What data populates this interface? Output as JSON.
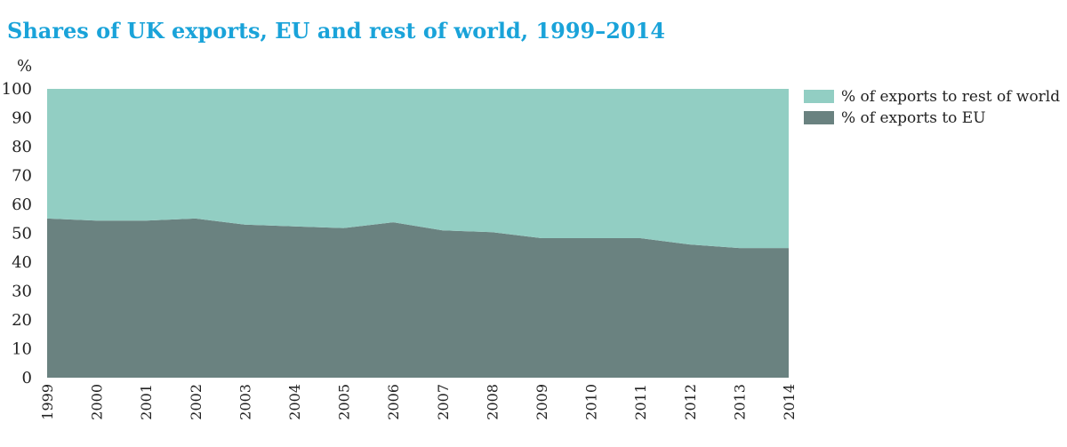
{
  "chart_data": {
    "type": "area",
    "stacked": true,
    "title": "Shares of UK exports, EU and rest of world, 1999–2014",
    "ylabel": "%",
    "xlabel": "",
    "ylim": [
      0,
      100
    ],
    "yticks": [
      "0",
      "10",
      "20",
      "30",
      "40",
      "50",
      "60",
      "70",
      "80",
      "90",
      "100"
    ],
    "x": [
      "1999",
      "2000",
      "2001",
      "2002",
      "2003",
      "2004",
      "2005",
      "2006",
      "2007",
      "2008",
      "2009",
      "2010",
      "2011",
      "2012",
      "2013",
      "2014"
    ],
    "series": [
      {
        "name": "% of exports to EU",
        "color": "#6a8280",
        "values": [
          55.1,
          54.4,
          54.4,
          55.1,
          53.0,
          52.4,
          51.8,
          53.8,
          51.0,
          50.4,
          48.3,
          48.3,
          48.3,
          46.1,
          44.9,
          44.9
        ]
      },
      {
        "name": "% of exports to rest of world",
        "color": "#92cec3",
        "values": [
          44.9,
          45.6,
          45.6,
          44.9,
          47.0,
          47.6,
          48.2,
          46.2,
          49.0,
          49.6,
          51.7,
          51.7,
          51.7,
          53.9,
          55.1,
          55.1
        ]
      }
    ],
    "legend": "top-right",
    "grid": false
  }
}
